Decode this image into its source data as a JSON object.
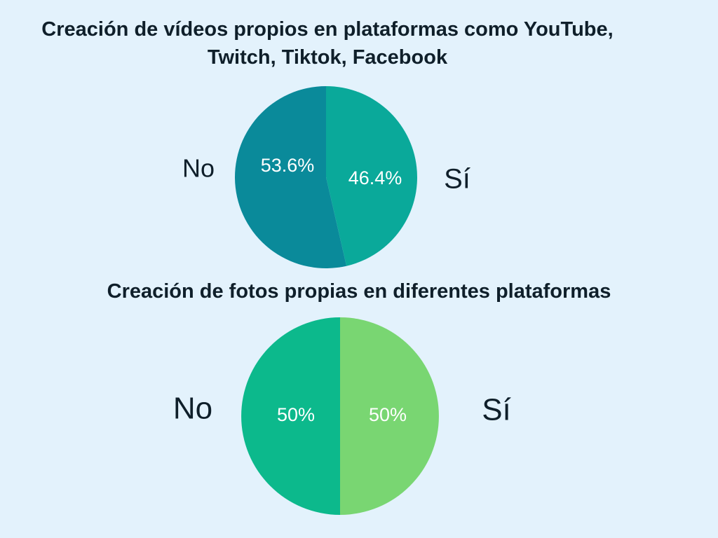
{
  "chart_data": [
    {
      "type": "pie",
      "title": "Creación de vídeos propios en plataformas como YouTube, Twitch, Tiktok, Facebook",
      "categories": [
        "Sí",
        "No"
      ],
      "values": [
        46.4,
        53.6
      ],
      "value_labels": [
        "46.4%",
        "53.6%"
      ],
      "colors": [
        "#0aa99a",
        "#0a8a9a"
      ]
    },
    {
      "type": "pie",
      "title": "Creación de fotos propias en diferentes plataformas",
      "categories": [
        "Sí",
        "No"
      ],
      "values": [
        50,
        50
      ],
      "value_labels": [
        "50%",
        "50%"
      ],
      "colors": [
        "#79d672",
        "#0cb98c"
      ]
    }
  ]
}
